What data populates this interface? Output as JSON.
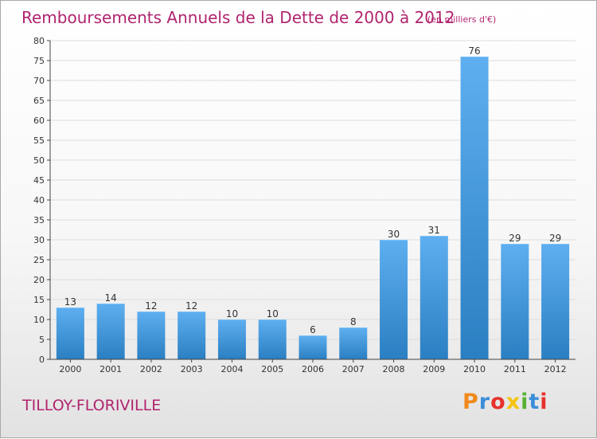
{
  "title": "Remboursements Annuels de la Dette de 2000 à 2012",
  "unit_note": "(en milliers d'€)",
  "location": "TILLOY-FLORIVILLE",
  "logo": {
    "text": "Proxiti",
    "letter_colors": [
      "#f08a1c",
      "#3b8ed8",
      "#e6312c",
      "#f5c310",
      "#58b132",
      "#3b8ed8",
      "#e6312c"
    ]
  },
  "colors": {
    "bar_top": "#5eaff0",
    "bar_bottom": "#2a7fc2",
    "axis": "#444444",
    "grid": "#dddddd",
    "title": "#b0246e"
  },
  "chart_data": {
    "type": "bar",
    "categories": [
      "2000",
      "2001",
      "2002",
      "2003",
      "2004",
      "2005",
      "2006",
      "2007",
      "2008",
      "2009",
      "2010",
      "2011",
      "2012"
    ],
    "values": [
      13,
      14,
      12,
      12,
      10,
      10,
      6,
      8,
      30,
      31,
      76,
      29,
      29
    ],
    "ylim": [
      0,
      80
    ],
    "yticks": [
      0,
      5,
      10,
      15,
      20,
      25,
      30,
      35,
      40,
      45,
      50,
      55,
      60,
      65,
      70,
      75,
      80
    ],
    "grid": true,
    "legend": false
  }
}
